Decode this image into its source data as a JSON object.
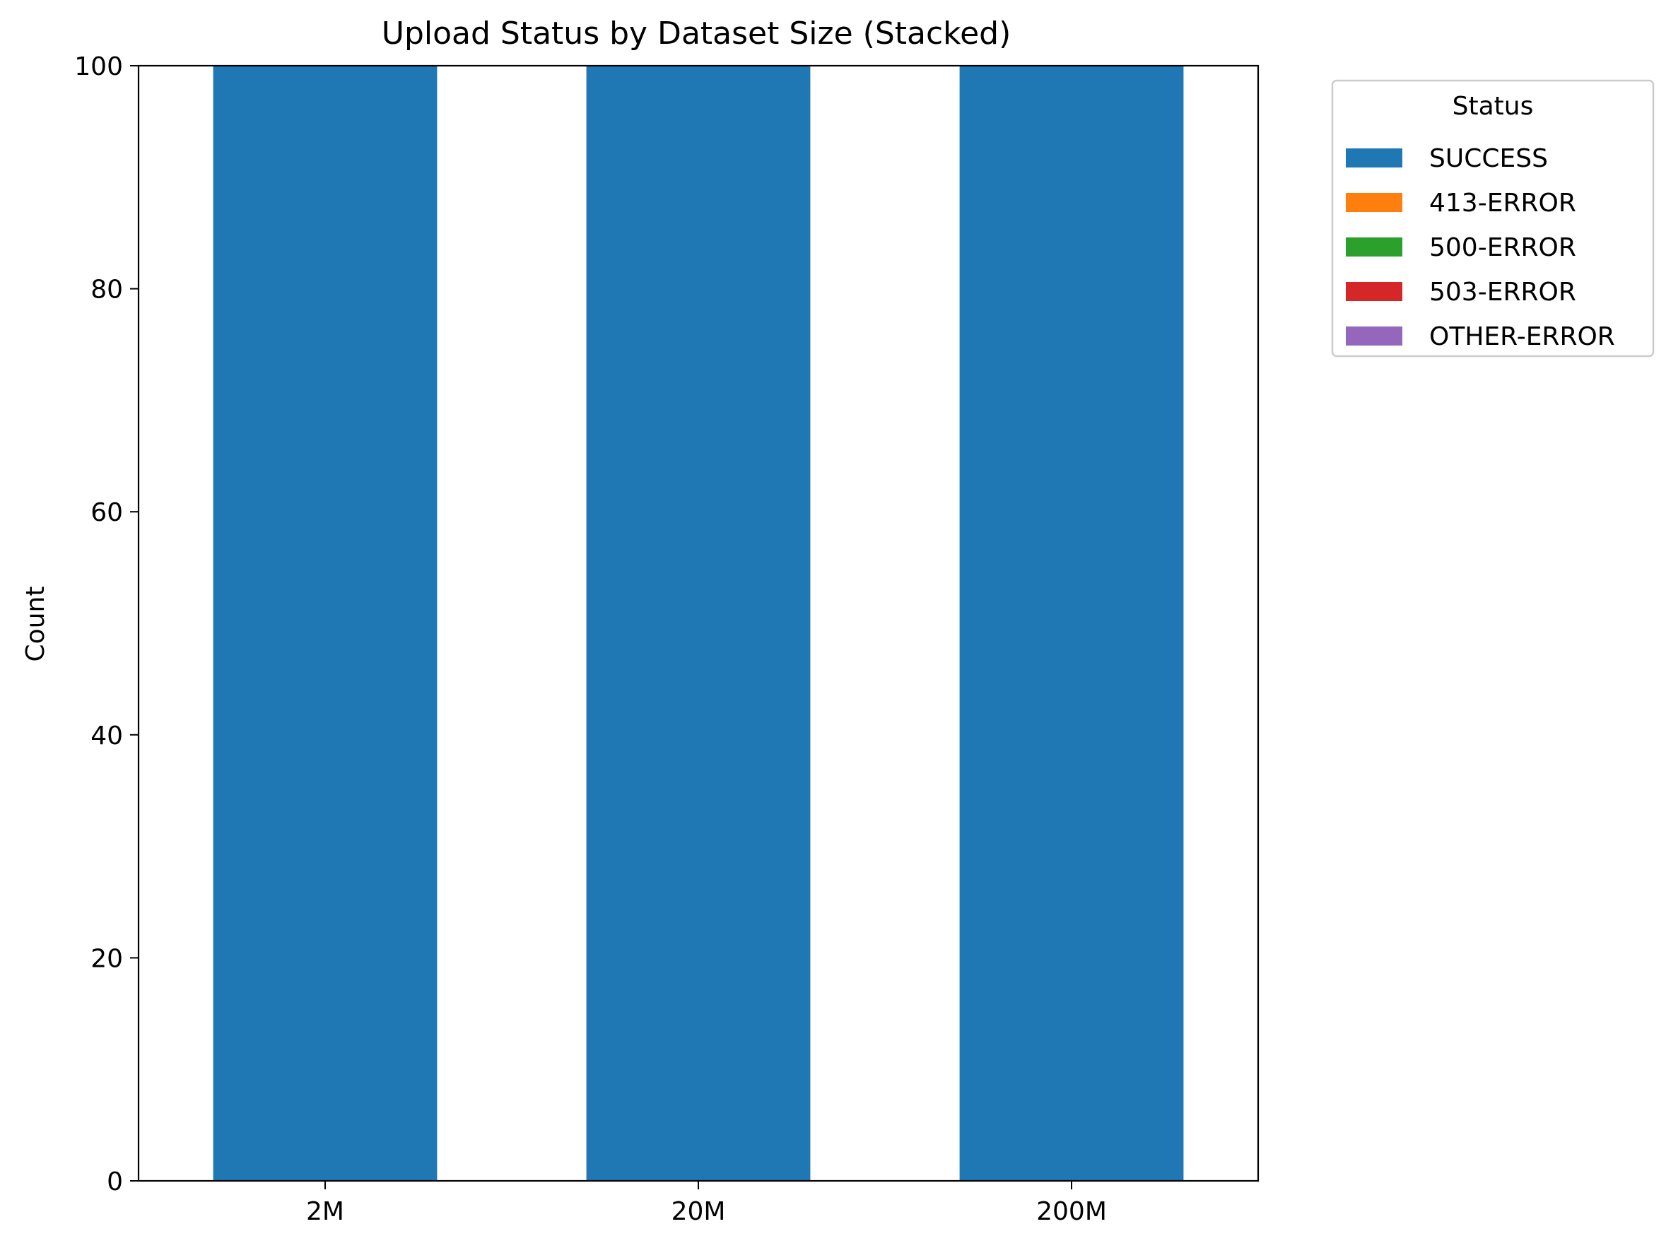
{
  "chart_data": {
    "type": "bar",
    "stacked": true,
    "title": "Upload Status by Dataset Size (Stacked)",
    "xlabel": "",
    "ylabel": "Count",
    "categories": [
      "2M",
      "20M",
      "200M"
    ],
    "ylim": [
      0,
      100
    ],
    "yticks": [
      0,
      20,
      40,
      60,
      80,
      100
    ],
    "series": [
      {
        "name": "SUCCESS",
        "color": "#1f77b4",
        "values": [
          100,
          100,
          100
        ]
      },
      {
        "name": "413-ERROR",
        "color": "#ff7f0e",
        "values": [
          0,
          0,
          0
        ]
      },
      {
        "name": "500-ERROR",
        "color": "#2ca02c",
        "values": [
          0,
          0,
          0
        ]
      },
      {
        "name": "503-ERROR",
        "color": "#d62728",
        "values": [
          0,
          0,
          0
        ]
      },
      {
        "name": "OTHER-ERROR",
        "color": "#9467bd",
        "values": [
          0,
          0,
          0
        ]
      }
    ],
    "legend": {
      "title": "Status",
      "position": "outside-right-top"
    },
    "grid": false
  }
}
